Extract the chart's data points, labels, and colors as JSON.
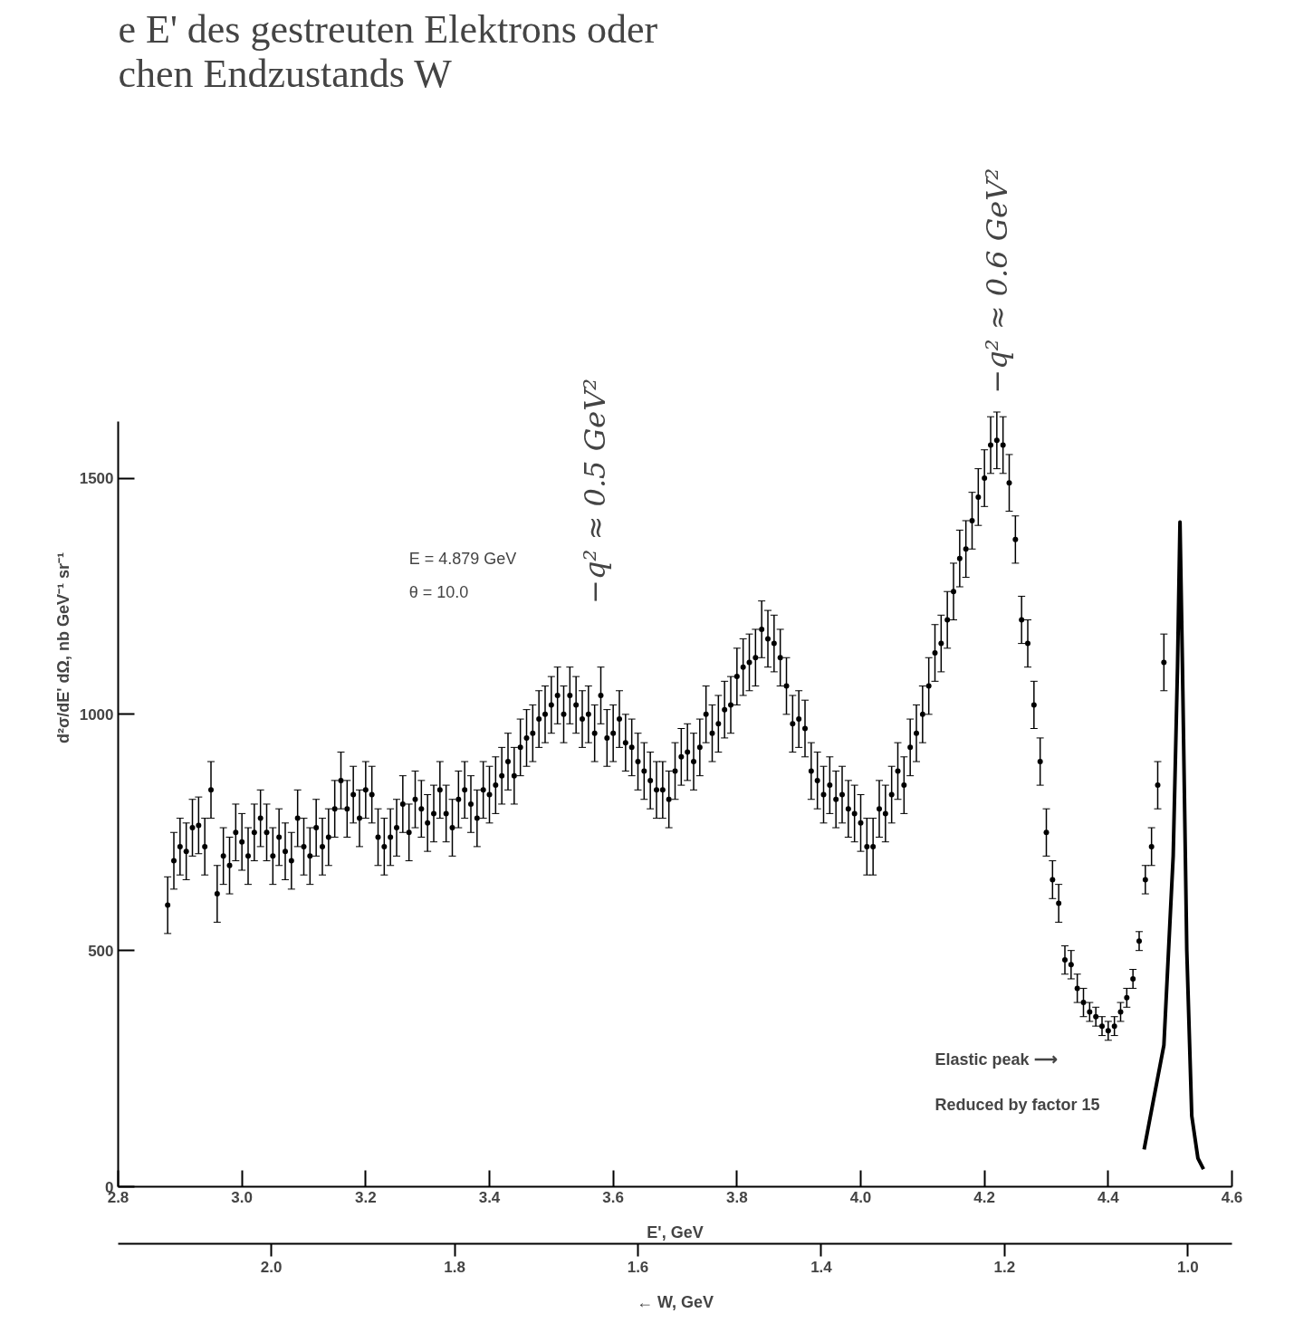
{
  "chart_data": {
    "type": "scatter",
    "title": "e E' des gestreuten Elektrons oder\nchen Endzustands W",
    "xlabel": "E', GeV",
    "ylabel": "d²σ/dE' dΩ, nb   GeV⁻¹ sr⁻¹",
    "x2label": "← W, GeV",
    "xlim": [
      2.8,
      4.6
    ],
    "xticks": [
      {
        "value": 2.8,
        "label": "2.8"
      },
      {
        "value": 3.0,
        "label": "3.0"
      },
      {
        "value": 3.2,
        "label": "3.2"
      },
      {
        "value": 3.4,
        "label": "3.4"
      },
      {
        "value": 3.6,
        "label": "3.6"
      },
      {
        "value": 3.8,
        "label": "3.8"
      },
      {
        "value": 4.0,
        "label": "4.0"
      },
      {
        "value": 4.2,
        "label": "4.2"
      },
      {
        "value": 4.4,
        "label": "4.4"
      },
      {
        "value": 4.6,
        "label": "4.6"
      }
    ],
    "x2lim": [
      2.167,
      0.952
    ],
    "x2ticks": [
      {
        "value": 2.0,
        "label": "2.0"
      },
      {
        "value": 1.8,
        "label": "1.8"
      },
      {
        "value": 1.6,
        "label": "1.6"
      },
      {
        "value": 1.4,
        "label": "1.4"
      },
      {
        "value": 1.2,
        "label": "1.2"
      },
      {
        "value": 1.0,
        "label": "1.0"
      }
    ],
    "ylim": [
      0,
      1620
    ],
    "yticks": [
      0,
      500,
      1000,
      1500
    ],
    "grid": false,
    "annotations": [
      "E = 4.879 GeV",
      "θ = 10.0",
      "Elastic peak ⟶",
      "Reduced by factor 15",
      "−q² ≈ 0.5 GeV²",
      "−q² ≈ 0.6 GeV²"
    ],
    "series": [
      {
        "color": "#000000",
        "marker": "circle",
        "x": [
          2.88,
          2.89,
          2.9,
          2.91,
          2.92,
          2.93,
          2.94,
          2.95,
          2.96,
          2.97,
          2.98,
          2.99,
          3.0,
          3.01,
          3.02,
          3.03,
          3.04,
          3.05,
          3.06,
          3.07,
          3.08,
          3.09,
          3.1,
          3.11,
          3.12,
          3.13,
          3.14,
          3.15,
          3.16,
          3.17,
          3.18,
          3.19,
          3.2,
          3.21,
          3.22,
          3.23,
          3.24,
          3.25,
          3.26,
          3.27,
          3.28,
          3.29,
          3.3,
          3.31,
          3.32,
          3.33,
          3.34,
          3.35,
          3.36,
          3.37,
          3.38,
          3.39,
          3.4,
          3.41,
          3.42,
          3.43,
          3.44,
          3.45,
          3.46,
          3.47,
          3.48,
          3.49,
          3.5,
          3.51,
          3.52,
          3.53,
          3.54,
          3.55,
          3.56,
          3.57,
          3.58,
          3.59,
          3.6,
          3.61,
          3.62,
          3.63,
          3.64,
          3.65,
          3.66,
          3.67,
          3.68,
          3.69,
          3.7,
          3.71,
          3.72,
          3.73,
          3.74,
          3.75,
          3.76,
          3.77,
          3.78,
          3.79,
          3.8,
          3.81,
          3.82,
          3.83,
          3.84,
          3.85,
          3.86,
          3.87,
          3.88,
          3.89,
          3.9,
          3.91,
          3.92,
          3.93,
          3.94,
          3.95,
          3.96,
          3.97,
          3.98,
          3.99,
          4.0,
          4.01,
          4.02,
          4.03,
          4.04,
          4.05,
          4.06,
          4.07,
          4.08,
          4.09,
          4.1,
          4.11,
          4.12,
          4.13,
          4.14,
          4.15,
          4.16,
          4.17,
          4.18,
          4.19,
          4.2,
          4.21,
          4.22,
          4.23,
          4.24,
          4.25,
          4.26,
          4.27,
          4.28,
          4.29,
          4.3,
          4.31,
          4.32,
          4.33,
          4.34,
          4.35,
          4.36,
          4.37,
          4.38,
          4.39,
          4.4,
          4.41,
          4.42,
          4.43,
          4.44,
          4.45,
          4.46,
          4.47,
          4.48,
          4.49
        ],
        "values": [
          596,
          690,
          720,
          710,
          760,
          765,
          720,
          840,
          620,
          700,
          680,
          750,
          730,
          700,
          750,
          780,
          750,
          700,
          740,
          710,
          690,
          780,
          720,
          700,
          760,
          720,
          740,
          800,
          860,
          800,
          830,
          780,
          840,
          830,
          740,
          720,
          740,
          760,
          810,
          750,
          820,
          800,
          770,
          790,
          840,
          790,
          760,
          820,
          840,
          810,
          780,
          840,
          830,
          850,
          870,
          900,
          870,
          930,
          950,
          960,
          990,
          1000,
          1020,
          1040,
          1000,
          1040,
          1020,
          990,
          1000,
          960,
          1040,
          950,
          960,
          990,
          940,
          930,
          900,
          880,
          860,
          840,
          840,
          820,
          880,
          910,
          920,
          900,
          930,
          1000,
          960,
          980,
          1010,
          1020,
          1080,
          1100,
          1110,
          1120,
          1180,
          1160,
          1150,
          1120,
          1060,
          980,
          990,
          970,
          880,
          860,
          830,
          850,
          820,
          830,
          800,
          790,
          770,
          720,
          720,
          800,
          790,
          830,
          880,
          850,
          930,
          960,
          1000,
          1060,
          1130,
          1150,
          1200,
          1260,
          1330,
          1350,
          1410,
          1460,
          1500,
          1570,
          1580,
          1570,
          1490,
          1370,
          1200,
          1150,
          1020,
          900,
          750,
          650,
          600,
          480,
          470,
          420,
          390,
          370,
          360,
          340,
          330,
          340,
          370,
          400,
          440,
          520,
          650,
          720,
          850,
          1110
        ],
        "errors": [
          60,
          60,
          60,
          60,
          60,
          60,
          60,
          60,
          60,
          60,
          60,
          60,
          60,
          60,
          60,
          60,
          60,
          60,
          60,
          60,
          60,
          60,
          60,
          60,
          60,
          60,
          60,
          60,
          60,
          60,
          60,
          60,
          60,
          60,
          60,
          60,
          60,
          60,
          60,
          60,
          60,
          60,
          60,
          60,
          60,
          60,
          60,
          60,
          60,
          60,
          60,
          60,
          60,
          60,
          60,
          60,
          60,
          60,
          60,
          60,
          60,
          60,
          60,
          60,
          60,
          60,
          60,
          60,
          60,
          60,
          60,
          60,
          60,
          60,
          60,
          60,
          60,
          60,
          60,
          60,
          60,
          60,
          60,
          60,
          60,
          60,
          60,
          60,
          60,
          60,
          60,
          60,
          60,
          60,
          60,
          60,
          60,
          60,
          60,
          60,
          60,
          60,
          60,
          60,
          60,
          60,
          60,
          60,
          60,
          60,
          60,
          60,
          60,
          60,
          60,
          60,
          60,
          60,
          60,
          60,
          60,
          60,
          60,
          60,
          60,
          60,
          60,
          60,
          60,
          60,
          60,
          60,
          60,
          60,
          60,
          60,
          60,
          50,
          50,
          50,
          50,
          50,
          50,
          40,
          40,
          30,
          30,
          30,
          30,
          20,
          20,
          20,
          20,
          20,
          20,
          20,
          20,
          20,
          30,
          40,
          50,
          60
        ]
      },
      {
        "type": "line",
        "color": "#000000",
        "x": [
          4.458,
          4.49,
          4.505,
          4.512,
          4.516,
          4.52,
          4.527,
          4.535,
          4.545,
          4.554
        ],
        "values": [
          79,
          300,
          700,
          1100,
          1407,
          1100,
          500,
          150,
          60,
          37
        ]
      }
    ]
  }
}
